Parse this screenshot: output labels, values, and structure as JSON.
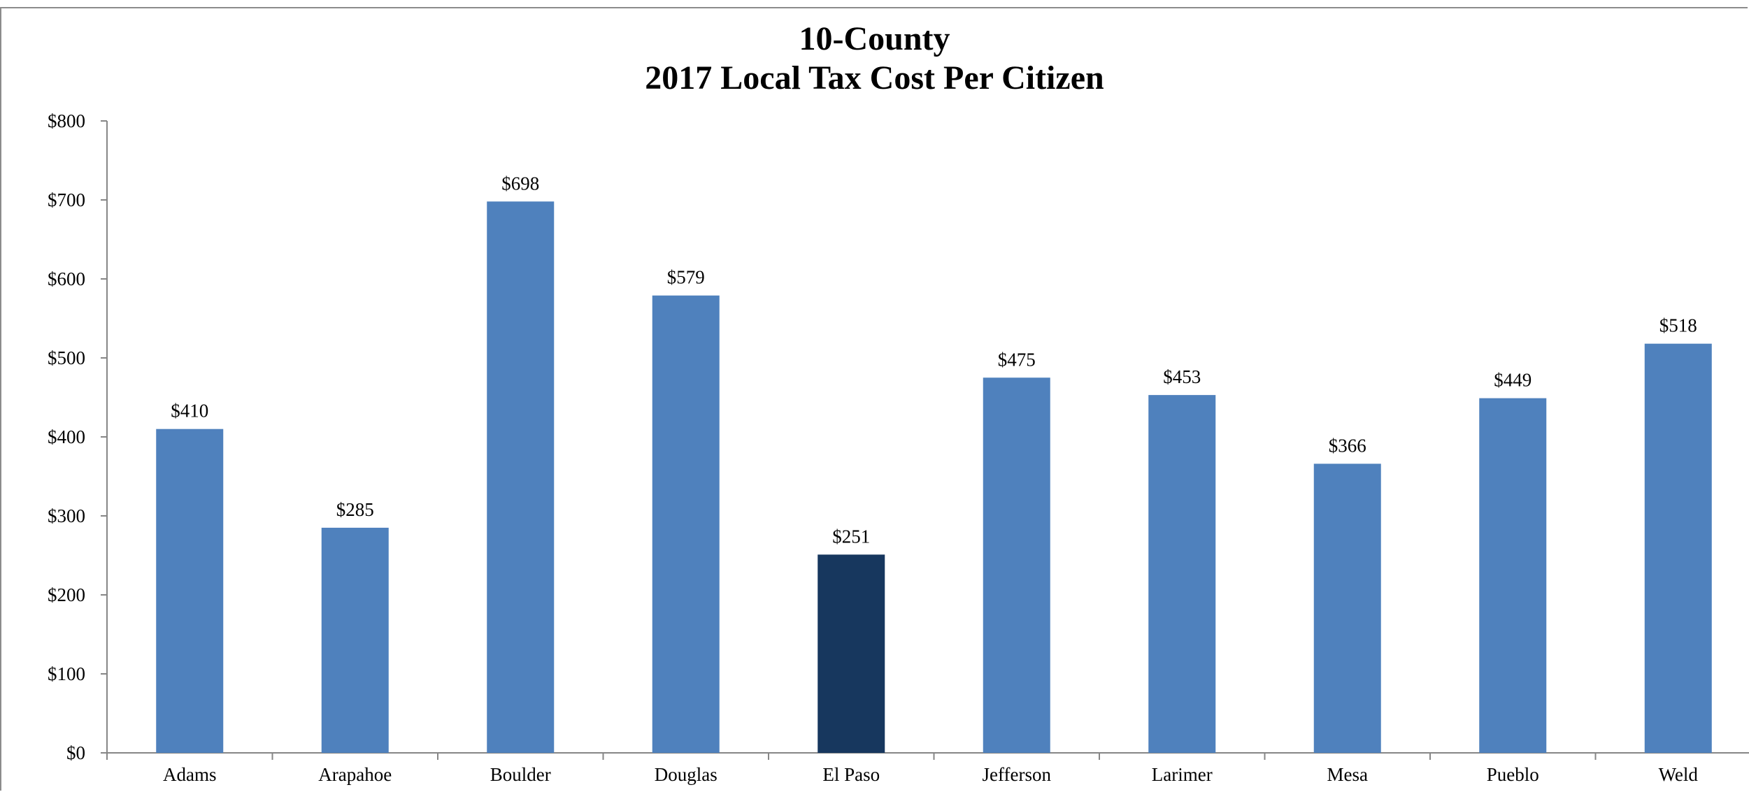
{
  "chart_data": {
    "type": "bar",
    "title_lines": [
      "10-County",
      "2017 Local Tax Cost Per Citizen"
    ],
    "categories": [
      "Adams",
      "Arapahoe",
      "Boulder",
      "Douglas",
      "El Paso",
      "Jefferson",
      "Larimer",
      "Mesa",
      "Pueblo",
      "Weld"
    ],
    "values": [
      410,
      285,
      698,
      579,
      251,
      475,
      453,
      366,
      449,
      518
    ],
    "data_labels": [
      "$410",
      "$285",
      "$698",
      "$579",
      "$251",
      "$475",
      "$453",
      "$366",
      "$449",
      "$518"
    ],
    "y_ticks": [
      0,
      100,
      200,
      300,
      400,
      500,
      600,
      700,
      800
    ],
    "y_tick_labels": [
      "$0",
      "$100",
      "$200",
      "$300",
      "$400",
      "$500",
      "$600",
      "$700",
      "$800"
    ],
    "ylim": [
      0,
      800
    ],
    "xlabel": "",
    "ylabel": "",
    "grid": false,
    "legend": "none",
    "highlight_category": "El Paso",
    "colors": {
      "bar": "#4f81bd",
      "highlight": "#17375e",
      "axis": "#868686"
    }
  }
}
